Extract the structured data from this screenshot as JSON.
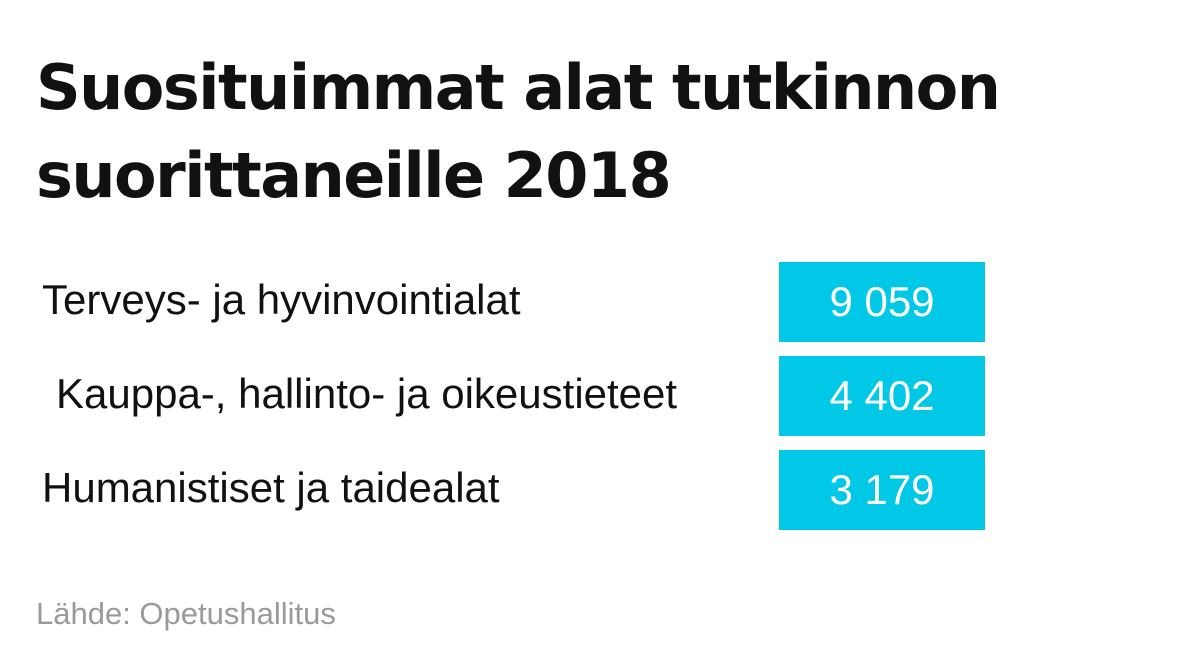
{
  "chart_data": {
    "type": "table",
    "title_lines": [
      "Suosituimmat alat tutkinnon",
      "suorittaneille 2018"
    ],
    "categories": [
      "Terveys- ja hyvinvointialat",
      "Kauppa-, hallinto- ja oikeustieteet",
      "Humanistiset ja taidealat"
    ],
    "values": [
      9059,
      4402,
      3179
    ],
    "value_labels": [
      "9 059",
      "4 402",
      "3 179"
    ],
    "box_color": "#00c8e6",
    "value_text_color": "#ffffff",
    "source": "Lähde: Opetushallitus"
  }
}
